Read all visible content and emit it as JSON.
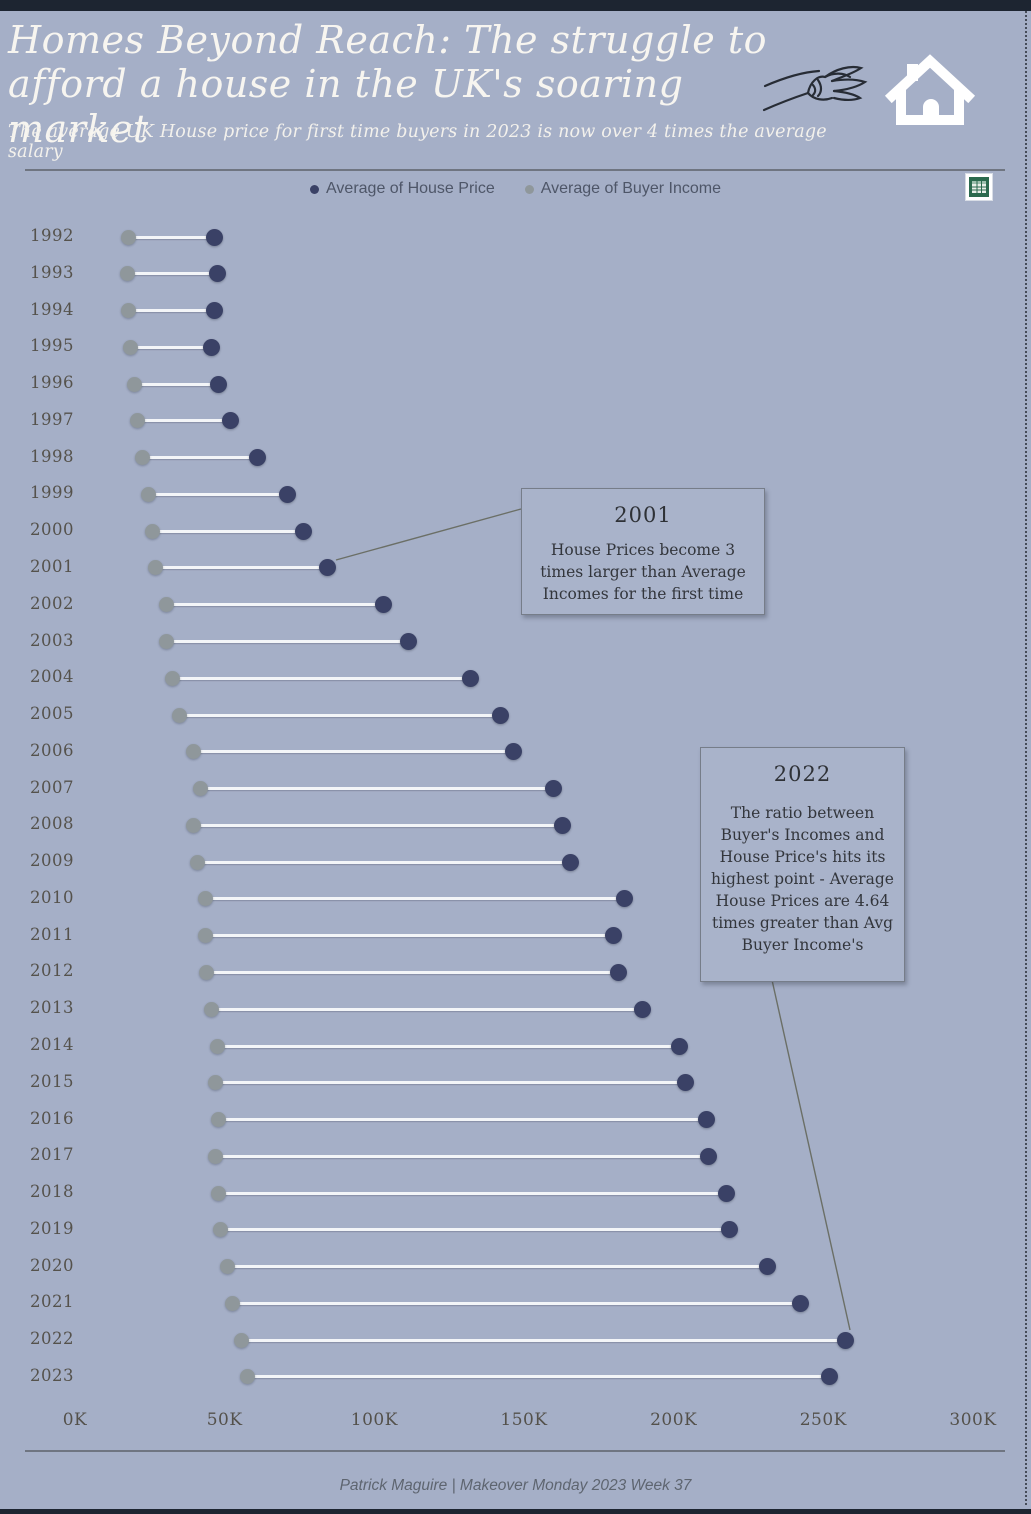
{
  "header": {
    "title": "Homes Beyond Reach: The struggle to\nafford a house in the UK's soaring market",
    "subtitle": "The average UK House price for first time buyers in 2023 is now over 4 times the average salary"
  },
  "icons": {
    "hand": "hand-sketch-icon",
    "house": "house-icon",
    "sheet": "spreadsheet-icon"
  },
  "legend": {
    "items": [
      {
        "label": "Average of House Price",
        "color": "#3a4166"
      },
      {
        "label": "Average of Buyer Income",
        "color": "#8f979b"
      }
    ]
  },
  "chart_data": {
    "type": "dumbbell",
    "orientation": "horizontal",
    "units": "GBP thousands",
    "categories": [
      1992,
      1993,
      1994,
      1995,
      1996,
      1997,
      1998,
      1999,
      2000,
      2001,
      2002,
      2003,
      2004,
      2005,
      2006,
      2007,
      2008,
      2009,
      2010,
      2011,
      2012,
      2013,
      2014,
      2015,
      2016,
      2017,
      2018,
      2019,
      2020,
      2021,
      2022,
      2023
    ],
    "series": [
      {
        "name": "Average of House Price",
        "color": "#3a4166",
        "values": [
          46.5,
          47.5,
          46.5,
          45.5,
          48,
          52,
          61,
          71,
          76.5,
          84.5,
          103,
          111.5,
          132,
          142,
          146.5,
          160,
          163,
          165.5,
          183.5,
          180,
          181.5,
          189.5,
          202,
          204,
          211,
          211.5,
          217.5,
          218.5,
          231.5,
          242.5,
          257.5,
          252
        ]
      },
      {
        "name": "Average of Buyer Income",
        "color": "#8f979b",
        "values": [
          18,
          17.5,
          18,
          18.5,
          20,
          21,
          22.5,
          24.5,
          26,
          27,
          30.5,
          30.5,
          32.5,
          35,
          39.5,
          42,
          39.5,
          41,
          43.5,
          43.5,
          44,
          45.5,
          47.5,
          47,
          48,
          47,
          48,
          48.5,
          51,
          52.5,
          55.5,
          57.5
        ]
      }
    ],
    "x_ticks": {
      "values": [
        0,
        50,
        100,
        150,
        200,
        250,
        300
      ],
      "labels": [
        "0K",
        "50K",
        "100K",
        "150K",
        "200K",
        "250K",
        "300K"
      ]
    },
    "xlim": [
      0,
      300
    ],
    "grid": false,
    "legend_position": "top"
  },
  "annotations": [
    {
      "title": "2001",
      "body": "House Prices become 3 times larger than Average Incomes for the first time"
    },
    {
      "title": "2022",
      "body": "The ratio between Buyer's Incomes and House Price's hits its highest point - Average House Prices are 4.64 times greater than Avg Buyer Income's"
    }
  ],
  "footer": {
    "credit": "Patrick Maguire | Makeover Monday 2023 Week 37"
  }
}
